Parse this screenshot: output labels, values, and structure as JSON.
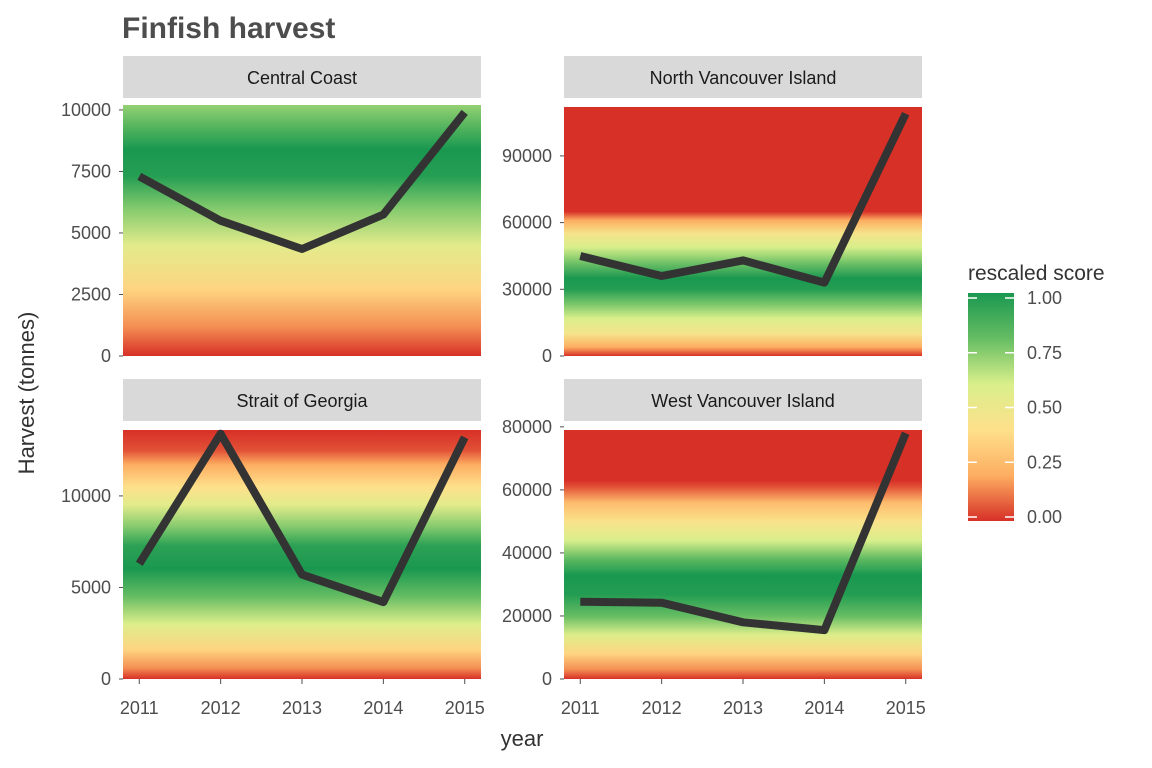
{
  "chart_data": {
    "type": "line",
    "title": "Finfish harvest",
    "xlabel": "year",
    "ylabel": "Harvest (tonnes)",
    "x": [
      2011,
      2012,
      2013,
      2014,
      2015
    ],
    "x_tick_labels": [
      "2011",
      "2012",
      "2013",
      "2014",
      "2015"
    ],
    "facet_layout": "2x2",
    "line_color": "#333333",
    "background_fill": "vertical gradient of rescaled score by harvest",
    "panels": [
      {
        "strip": "Central Coast",
        "series": [
          {
            "values": [
              7300,
              5500,
              4350,
              5750,
              9900
            ]
          }
        ],
        "ylim": [
          0,
          10200
        ],
        "yticks": [
          0,
          2500,
          5000,
          7500,
          10000
        ],
        "ytick_labels": [
          "0",
          "2500",
          "5000",
          "7500",
          "10000"
        ],
        "background_score_stops": [
          [
            0,
            0.0
          ],
          [
            1200,
            0.15
          ],
          [
            2700,
            0.35
          ],
          [
            4500,
            0.55
          ],
          [
            6000,
            0.75
          ],
          [
            7300,
            0.97
          ],
          [
            8400,
            1.0
          ],
          [
            9300,
            0.85
          ],
          [
            10200,
            0.72
          ]
        ]
      },
      {
        "strip": "North Vancouver Island",
        "series": [
          {
            "values": [
              45000,
              36000,
              43000,
              33000,
              109000
            ]
          }
        ],
        "ylim": [
          0,
          112000
        ],
        "yticks": [
          0,
          30000,
          60000,
          90000
        ],
        "ytick_labels": [
          "0",
          "30000",
          "60000",
          "90000"
        ],
        "background_score_stops": [
          [
            0,
            0.0
          ],
          [
            4000,
            0.2
          ],
          [
            10000,
            0.45
          ],
          [
            17000,
            0.6
          ],
          [
            24000,
            0.78
          ],
          [
            30000,
            0.97
          ],
          [
            35000,
            1.0
          ],
          [
            42000,
            0.78
          ],
          [
            49000,
            0.6
          ],
          [
            55000,
            0.45
          ],
          [
            61000,
            0.2
          ],
          [
            65000,
            0.0
          ],
          [
            112000,
            0.0
          ]
        ]
      },
      {
        "strip": "Strait of Georgia",
        "series": [
          {
            "values": [
              6300,
              13400,
              5700,
              4200,
              13200
            ]
          }
        ],
        "ylim": [
          0,
          13600
        ],
        "yticks": [
          0,
          5000,
          10000
        ],
        "ytick_labels": [
          "0",
          "5000",
          "10000"
        ],
        "background_score_stops": [
          [
            0,
            0.0
          ],
          [
            600,
            0.15
          ],
          [
            1600,
            0.35
          ],
          [
            3000,
            0.58
          ],
          [
            4500,
            0.8
          ],
          [
            6000,
            1.0
          ],
          [
            7300,
            0.95
          ],
          [
            8300,
            0.75
          ],
          [
            9500,
            0.55
          ],
          [
            10500,
            0.4
          ],
          [
            11700,
            0.2
          ],
          [
            12500,
            0.05
          ],
          [
            13600,
            0.0
          ]
        ]
      },
      {
        "strip": "West Vancouver Island",
        "series": [
          {
            "values": [
              24500,
              24200,
              18000,
              15500,
              78000
            ]
          }
        ],
        "ylim": [
          0,
          79000
        ],
        "yticks": [
          0,
          20000,
          40000,
          60000,
          80000
        ],
        "ytick_labels": [
          "0",
          "20000",
          "40000",
          "60000",
          "80000"
        ],
        "background_score_stops": [
          [
            0,
            0.0
          ],
          [
            3000,
            0.15
          ],
          [
            8000,
            0.35
          ],
          [
            14000,
            0.58
          ],
          [
            20000,
            0.8
          ],
          [
            27000,
            0.98
          ],
          [
            33000,
            1.0
          ],
          [
            38000,
            0.82
          ],
          [
            44000,
            0.6
          ],
          [
            50000,
            0.42
          ],
          [
            56000,
            0.25
          ],
          [
            61000,
            0.05
          ],
          [
            63000,
            0.0
          ],
          [
            79000,
            0.0
          ]
        ]
      }
    ],
    "legend": {
      "title": "rescaled score",
      "placement": "right",
      "tick_values": [
        0,
        0.25,
        0.5,
        0.75,
        1.0
      ],
      "tick_labels": [
        "0.00",
        "0.25",
        "0.50",
        "0.75",
        "1.00"
      ],
      "colors": [
        "#d73027",
        "#fdae61",
        "#fee08b",
        "#d9ef8b",
        "#66bd63",
        "#1a9850"
      ]
    }
  }
}
